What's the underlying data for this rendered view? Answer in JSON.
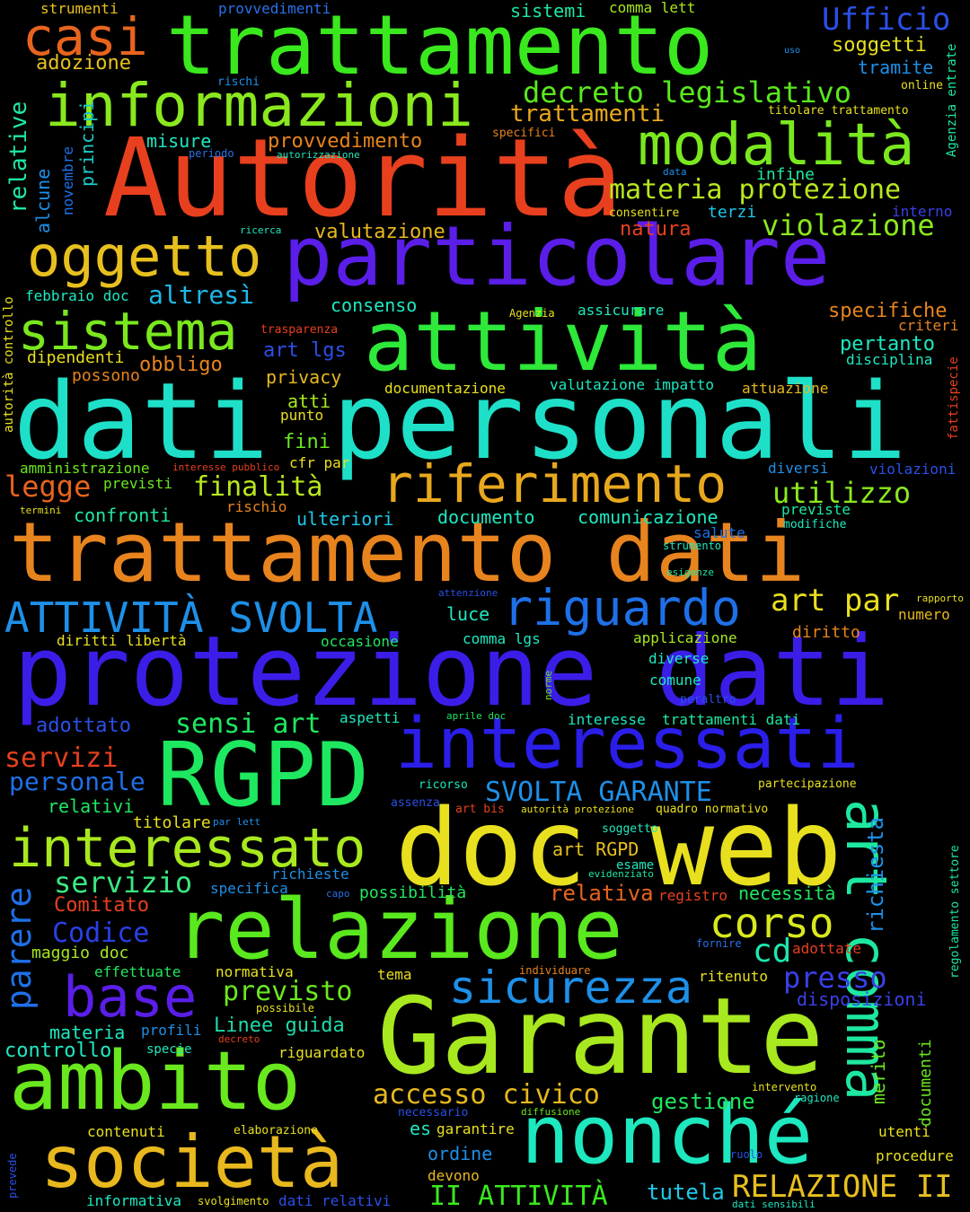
{
  "words": [
    {
      "text": "dati personali",
      "color": "#1ee0c8"
    },
    {
      "text": "protezione dati",
      "color": "#3a1ee8"
    },
    {
      "text": "trattamento dati",
      "color": "#e8841e"
    },
    {
      "text": "Autorità",
      "color": "#e8401e"
    },
    {
      "text": "Garante",
      "color": "#a8e81e"
    },
    {
      "text": "doc web",
      "color": "#e8e01e"
    },
    {
      "text": "trattamento",
      "color": "#3ae81e"
    },
    {
      "text": "particolare",
      "color": "#5a1ee8"
    },
    {
      "text": "attività",
      "color": "#2ee83a"
    },
    {
      "text": "relazione",
      "color": "#5ae81e"
    },
    {
      "text": "RGPD",
      "color": "#1ee860"
    },
    {
      "text": "interessati",
      "color": "#2a1ee8"
    },
    {
      "text": "nonché",
      "color": "#1ee8c0"
    },
    {
      "text": "ambito",
      "color": "#6ae81e"
    },
    {
      "text": "società",
      "color": "#e8b81e"
    },
    {
      "text": "informazioni",
      "color": "#8ae81e"
    },
    {
      "text": "modalità",
      "color": "#7ae81e"
    },
    {
      "text": "interessato",
      "color": "#a8e81e"
    },
    {
      "text": "art comma",
      "color": "#1ee8a0"
    },
    {
      "text": "riferimento",
      "color": "#e8a81e"
    },
    {
      "text": "sistema",
      "color": "#7ae81e"
    },
    {
      "text": "oggetto",
      "color": "#e8c01e"
    },
    {
      "text": "casi",
      "color": "#e8641e"
    },
    {
      "text": "base",
      "color": "#5a1ee8"
    },
    {
      "text": "sicurezza",
      "color": "#1e90e8"
    },
    {
      "text": "riguardo",
      "color": "#1e70e8"
    },
    {
      "text": "ATTIVITÀ SVOLTA",
      "color": "#1e90e8"
    },
    {
      "text": "corso",
      "color": "#d8e81e"
    },
    {
      "text": "decreto legislativo",
      "color": "#5ae81e"
    },
    {
      "text": "Ufficio",
      "color": "#2a50e8"
    },
    {
      "text": "materia protezione",
      "color": "#b8e81e"
    },
    {
      "text": "violazione",
      "color": "#8ae81e"
    },
    {
      "text": "trattamenti",
      "color": "#e8a81e"
    },
    {
      "text": "finalità",
      "color": "#b8e81e"
    },
    {
      "text": "utilizzo",
      "color": "#8ae81e"
    },
    {
      "text": "legge",
      "color": "#e8641e"
    },
    {
      "text": "altresì",
      "color": "#1eb8e8"
    },
    {
      "text": "sensi art",
      "color": "#1ee860"
    },
    {
      "text": "parere",
      "color": "#1e70e8"
    },
    {
      "text": "servizio",
      "color": "#3ae880"
    },
    {
      "text": "Codice",
      "color": "#2a40e8"
    },
    {
      "text": "presso",
      "color": "#3a40e8"
    },
    {
      "text": "previsto",
      "color": "#6ae81e"
    },
    {
      "text": "accesso civico",
      "color": "#e8b81e"
    },
    {
      "text": "Linee guida",
      "color": "#1ed8a8"
    },
    {
      "text": "richiesta",
      "color": "#1e90e8"
    },
    {
      "text": "cd",
      "color": "#1ee8b0"
    },
    {
      "text": "relativa",
      "color": "#e8641e"
    },
    {
      "text": "II ATTIVITÀ",
      "color": "#3ae81e"
    },
    {
      "text": "RELAZIONE II",
      "color": "#e8c01e"
    },
    {
      "text": "SVOLTA GARANTE",
      "color": "#1e90e8"
    },
    {
      "text": "art par",
      "color": "#e8e01e"
    },
    {
      "text": "valutazione",
      "color": "#e8b81e"
    },
    {
      "text": "specifiche",
      "color": "#e8841e"
    },
    {
      "text": "servizi",
      "color": "#e8401e"
    },
    {
      "text": "personale",
      "color": "#1e70e8"
    },
    {
      "text": "gestione",
      "color": "#1ee860"
    },
    {
      "text": "tutela",
      "color": "#1ec8e8"
    },
    {
      "text": "misure",
      "color": "#1ee8c0"
    },
    {
      "text": "provvedimento",
      "color": "#e8841e"
    },
    {
      "text": "relative",
      "color": "#1ee8a0"
    },
    {
      "text": "principi",
      "color": "#1ec8c8"
    },
    {
      "text": "alcune",
      "color": "#1e90e8"
    },
    {
      "text": "novembre",
      "color": "#1e70e8"
    },
    {
      "text": "soggetti",
      "color": "#e8e01e"
    },
    {
      "text": "tramite",
      "color": "#1e90e8"
    },
    {
      "text": "adozione",
      "color": "#e8c01e"
    },
    {
      "text": "strumenti",
      "color": "#e8c01e"
    },
    {
      "text": "provvedimenti",
      "color": "#2a70e8"
    },
    {
      "text": "sistemi",
      "color": "#1ee8a0"
    },
    {
      "text": "comma lett",
      "color": "#a8e81e"
    },
    {
      "text": "uso",
      "color": "#1e90e8"
    },
    {
      "text": "online",
      "color": "#e8e01e"
    },
    {
      "text": "Agenzia entrate",
      "color": "#1ee8a0"
    },
    {
      "text": "titolare trattamento",
      "color": "#e8e01e"
    },
    {
      "text": "rischi",
      "color": "#1e90e8"
    },
    {
      "text": "specifici",
      "color": "#e8841e"
    },
    {
      "text": "periodo",
      "color": "#2a70e8"
    },
    {
      "text": "autorizzazione",
      "color": "#1ee8c0"
    },
    {
      "text": "data",
      "color": "#1e90e8"
    },
    {
      "text": "infine",
      "color": "#1ee8a0"
    },
    {
      "text": "consentire",
      "color": "#e8e01e"
    },
    {
      "text": "terzi",
      "color": "#1ec8e8"
    },
    {
      "text": "interno",
      "color": "#3a40e8"
    },
    {
      "text": "natura",
      "color": "#e8401e"
    },
    {
      "text": "ricerca",
      "color": "#1ee8c0"
    },
    {
      "text": "febbraio doc",
      "color": "#1ee8c0"
    },
    {
      "text": "consenso",
      "color": "#1ee8c0"
    },
    {
      "text": "Agenzia",
      "color": "#e8e01e"
    },
    {
      "text": "assicurare",
      "color": "#1ee8c0"
    },
    {
      "text": "criteri",
      "color": "#e8841e"
    },
    {
      "text": "fattispecie",
      "color": "#e8401e"
    },
    {
      "text": "autorità controllo",
      "color": "#e8e01e"
    },
    {
      "text": "trasparenza",
      "color": "#e8401e"
    },
    {
      "text": "art lgs",
      "color": "#2a50e8"
    },
    {
      "text": "pertanto",
      "color": "#1ee8c0"
    },
    {
      "text": "disciplina",
      "color": "#1ee8c0"
    },
    {
      "text": "dipendenti",
      "color": "#e8e01e"
    },
    {
      "text": "obbligo",
      "color": "#e8841e"
    },
    {
      "text": "possono",
      "color": "#e8841e"
    },
    {
      "text": "privacy",
      "color": "#e8b81e"
    },
    {
      "text": "valutazione impatto",
      "color": "#1ee8c0"
    },
    {
      "text": "attuazione",
      "color": "#e8b81e"
    },
    {
      "text": "documentazione",
      "color": "#e8e01e"
    },
    {
      "text": "atti",
      "color": "#a8e81e"
    },
    {
      "text": "punto",
      "color": "#e8e01e"
    },
    {
      "text": "fini",
      "color": "#6ae81e"
    },
    {
      "text": "cfr par",
      "color": "#e8e01e"
    },
    {
      "text": "amministrazione",
      "color": "#6ae81e"
    },
    {
      "text": "interesse pubblico",
      "color": "#e8401e"
    },
    {
      "text": "diversi",
      "color": "#1e90e8"
    },
    {
      "text": "violazioni",
      "color": "#2a50e8"
    },
    {
      "text": "previsti",
      "color": "#6ae81e"
    },
    {
      "text": "termini",
      "color": "#e8e01e"
    },
    {
      "text": "rischio",
      "color": "#e8841e"
    },
    {
      "text": "confronti",
      "color": "#1ee8a0"
    },
    {
      "text": "ulteriori",
      "color": "#1ec8e8"
    },
    {
      "text": "documento",
      "color": "#1ee8c0"
    },
    {
      "text": "comunicazione",
      "color": "#1ee8c0"
    },
    {
      "text": "previste",
      "color": "#1ee8a0"
    },
    {
      "text": "modifiche",
      "color": "#1ee8c0"
    },
    {
      "text": "salute",
      "color": "#1e70e8"
    },
    {
      "text": "strumento",
      "color": "#1ee8c0"
    },
    {
      "text": "esigenze",
      "color": "#1ee8a0"
    },
    {
      "text": "attenzione",
      "color": "#2a50e8"
    },
    {
      "text": "luce",
      "color": "#1ee8c0"
    },
    {
      "text": "rapporto",
      "color": "#e8e01e"
    },
    {
      "text": "numero",
      "color": "#e8b81e"
    },
    {
      "text": "diritti libertà",
      "color": "#e8e01e"
    },
    {
      "text": "occasione",
      "color": "#1ee860"
    },
    {
      "text": "comma lgs",
      "color": "#1ee8c0"
    },
    {
      "text": "applicazione",
      "color": "#a8e81e"
    },
    {
      "text": "diritto",
      "color": "#e8841e"
    },
    {
      "text": "diverse",
      "color": "#1ee8c0"
    },
    {
      "text": "comune",
      "color": "#1ee8c0"
    },
    {
      "text": "norme",
      "color": "#6ae81e"
    },
    {
      "text": "peraltro",
      "color": "#2a50e8"
    },
    {
      "text": "adottato",
      "color": "#2a50e8"
    },
    {
      "text": "aspetti",
      "color": "#1ee8c0"
    },
    {
      "text": "aprile doc",
      "color": "#1ee860"
    },
    {
      "text": "interesse",
      "color": "#1ee8c0"
    },
    {
      "text": "trattamenti dati",
      "color": "#1ee8a0"
    },
    {
      "text": "relativi",
      "color": "#1ee860"
    },
    {
      "text": "ricorso",
      "color": "#1ee8c0"
    },
    {
      "text": "partecipazione",
      "color": "#e8e01e"
    },
    {
      "text": "assenza",
      "color": "#2a50e8"
    },
    {
      "text": "art bis",
      "color": "#e8401e"
    },
    {
      "text": "autorità protezione",
      "color": "#e8e01e"
    },
    {
      "text": "quadro normativo",
      "color": "#e8e01e"
    },
    {
      "text": "titolare",
      "color": "#e8e01e"
    },
    {
      "text": "par lett",
      "color": "#1e90e8"
    },
    {
      "text": "soggetto",
      "color": "#1ee8c0"
    },
    {
      "text": "art RGPD",
      "color": "#e8c01e"
    },
    {
      "text": "esame",
      "color": "#1ee8c0"
    },
    {
      "text": "evidenziato",
      "color": "#1ee8a0"
    },
    {
      "text": "regolamento settore",
      "color": "#1ee8a0"
    },
    {
      "text": "documenti",
      "color": "#6ae81e"
    },
    {
      "text": "richieste",
      "color": "#1e90e8"
    },
    {
      "text": "specifica",
      "color": "#1e90e8"
    },
    {
      "text": "capo",
      "color": "#2a70e8"
    },
    {
      "text": "possibilità",
      "color": "#1ee860"
    },
    {
      "text": "registro",
      "color": "#e8401e"
    },
    {
      "text": "necessità",
      "color": "#1ee860"
    },
    {
      "text": "Comitato",
      "color": "#e8401e"
    },
    {
      "text": "maggio doc",
      "color": "#a8e81e"
    },
    {
      "text": "fornire",
      "color": "#2a70e8"
    },
    {
      "text": "adottate",
      "color": "#e8401e"
    },
    {
      "text": "effettuate",
      "color": "#1ee860"
    },
    {
      "text": "normativa",
      "color": "#e8e01e"
    },
    {
      "text": "tema",
      "color": "#e8e01e"
    },
    {
      "text": "individuare",
      "color": "#e8841e"
    },
    {
      "text": "ritenuto",
      "color": "#e8e01e"
    },
    {
      "text": "disposizioni",
      "color": "#3a40e8"
    },
    {
      "text": "possibile",
      "color": "#e8e01e"
    },
    {
      "text": "materia",
      "color": "#1ee8c0"
    },
    {
      "text": "profili",
      "color": "#1e90e8"
    },
    {
      "text": "controllo",
      "color": "#1ee8c0"
    },
    {
      "text": "specie",
      "color": "#1ee8c0"
    },
    {
      "text": "decreto",
      "color": "#e8401e"
    },
    {
      "text": "riguardato",
      "color": "#e8e01e"
    },
    {
      "text": "merito",
      "color": "#6ae81e"
    },
    {
      "text": "intervento",
      "color": "#e8e01e"
    },
    {
      "text": "ragione",
      "color": "#1ee8c0"
    },
    {
      "text": "utenti",
      "color": "#e8e01e"
    },
    {
      "text": "contenuti",
      "color": "#e8e01e"
    },
    {
      "text": "elaborazione",
      "color": "#e8e01e"
    },
    {
      "text": "necessario",
      "color": "#2a50e8"
    },
    {
      "text": "diffusione",
      "color": "#6ae81e"
    },
    {
      "text": "es",
      "color": "#1ee8c0"
    },
    {
      "text": "garantire",
      "color": "#e8e01e"
    },
    {
      "text": "prevede",
      "color": "#2a50e8"
    },
    {
      "text": "ordine",
      "color": "#1e90e8"
    },
    {
      "text": "ruolo",
      "color": "#2a50e8"
    },
    {
      "text": "procedure",
      "color": "#e8e01e"
    },
    {
      "text": "devono",
      "color": "#e8b81e"
    },
    {
      "text": "informativa",
      "color": "#1ee8c0"
    },
    {
      "text": "svolgimento",
      "color": "#e8e01e"
    },
    {
      "text": "dati relativi",
      "color": "#2a50e8"
    },
    {
      "text": "dati sensibili",
      "color": "#1ee8c0"
    }
  ]
}
